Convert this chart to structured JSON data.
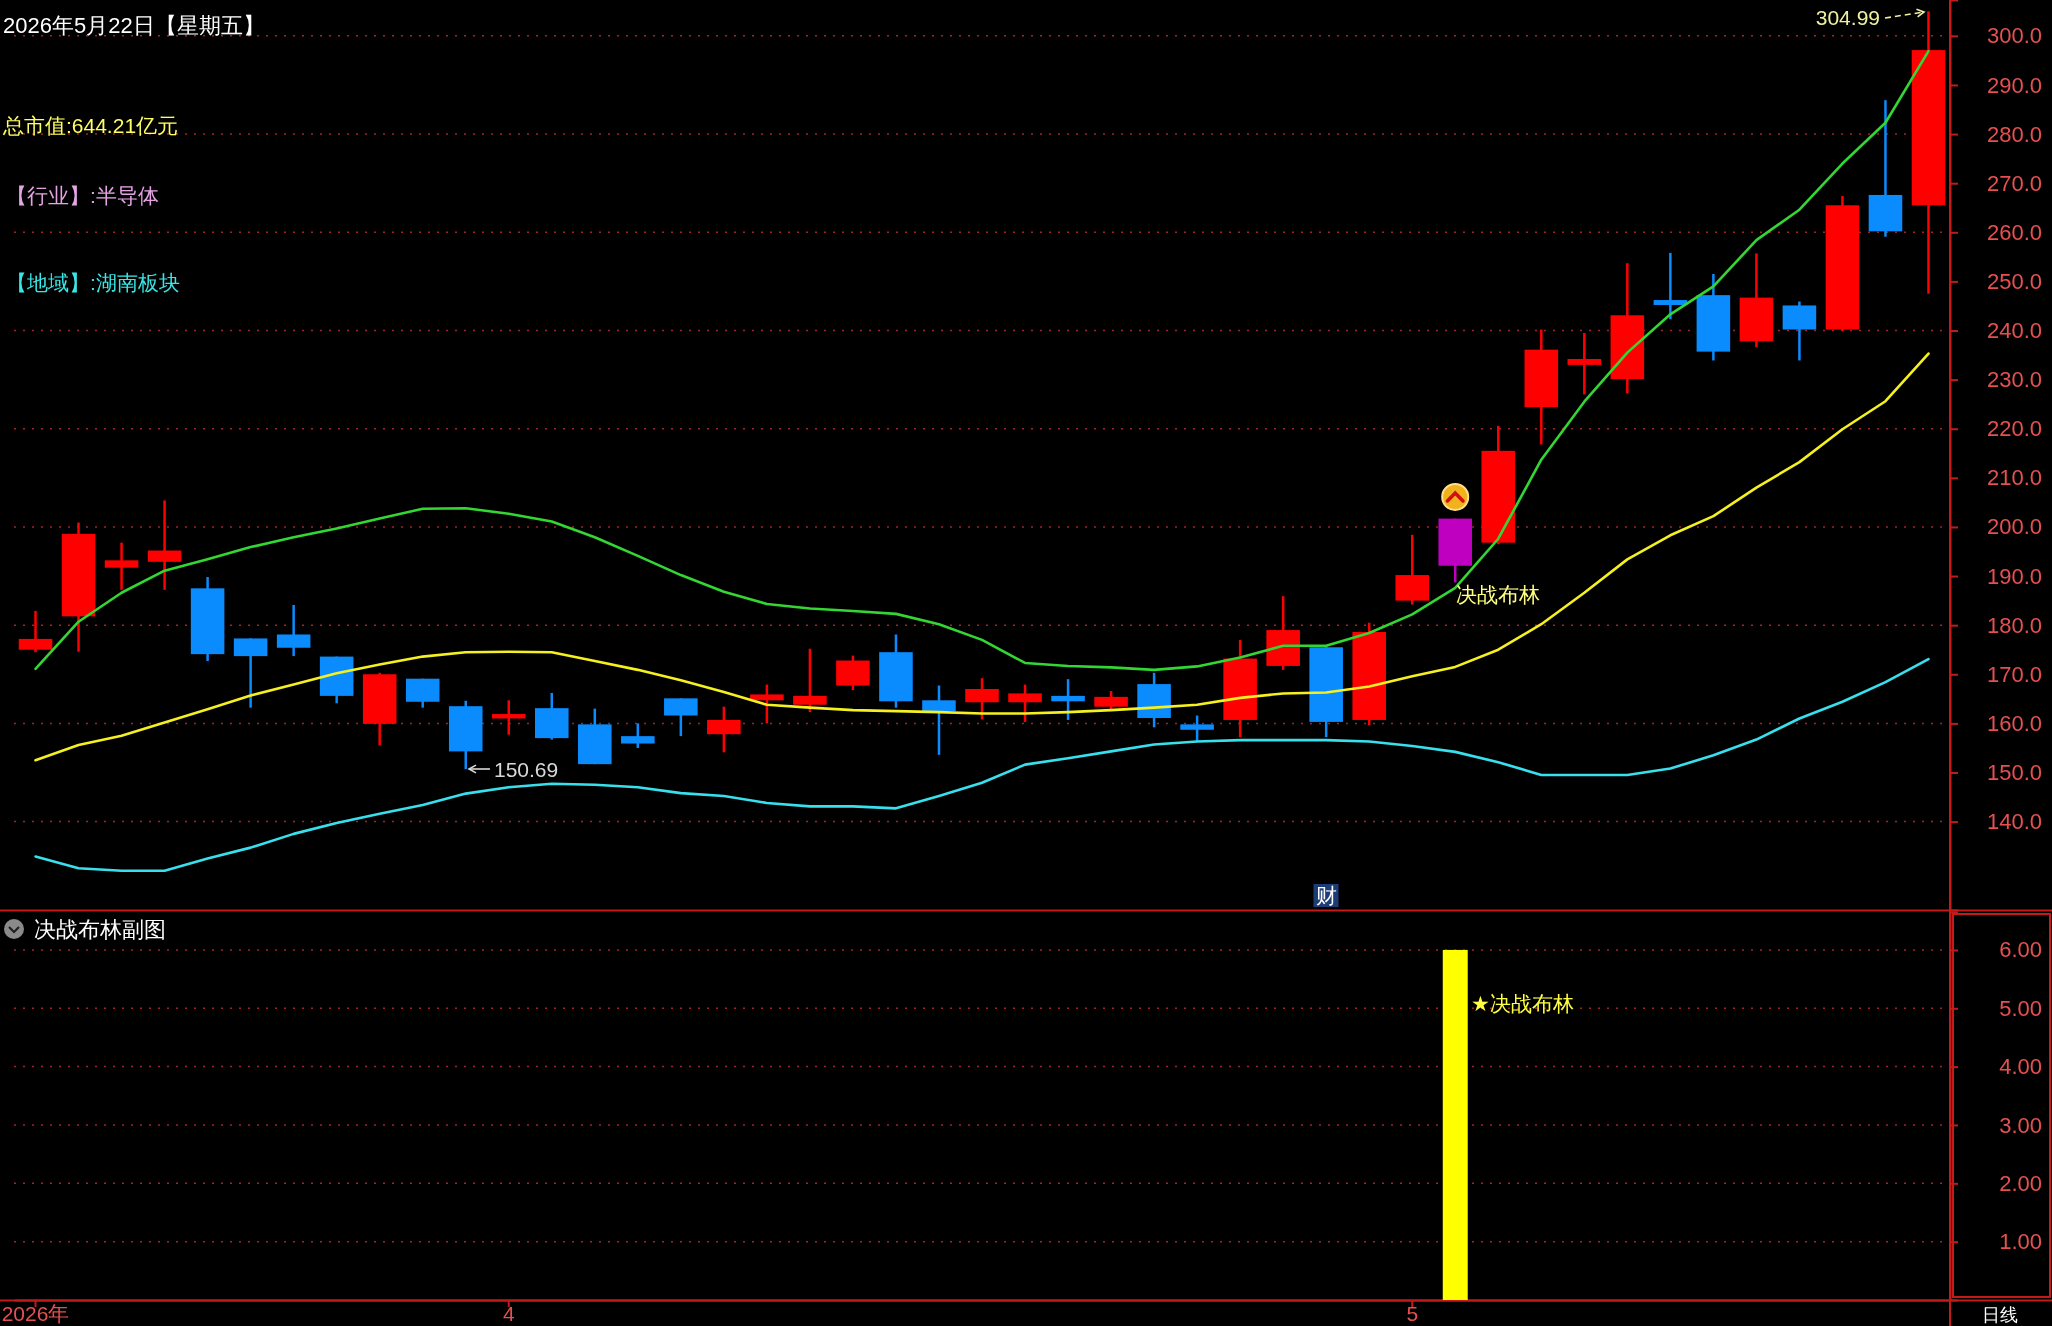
{
  "chart_data": [
    {
      "type": "candlestick",
      "title": "2026年5月22日【星期五】",
      "categories": [
        null,
        null,
        null,
        null,
        null,
        null,
        null,
        null,
        null,
        null,
        null,
        null,
        null,
        null,
        null,
        null,
        null,
        null,
        null,
        null,
        null,
        null,
        null,
        null,
        null,
        null,
        null,
        null,
        null,
        null,
        null,
        null,
        null,
        null,
        null,
        null,
        null,
        null,
        null,
        null,
        null,
        null,
        null,
        null,
        null
      ],
      "ohlc": [
        [
          175.0,
          182.9,
          174.5,
          177.2
        ],
        [
          181.8,
          200.9,
          174.6,
          198.6
        ],
        [
          191.7,
          196.8,
          187.2,
          193.2
        ],
        [
          192.9,
          205.4,
          187.2,
          195.2
        ],
        [
          187.5,
          189.8,
          172.7,
          174.1
        ],
        [
          177.3,
          177.3,
          163.2,
          173.7
        ],
        [
          178.1,
          184.1,
          173.7,
          175.4
        ],
        [
          173.6,
          173.6,
          164.1,
          165.6
        ],
        [
          159.9,
          170.3,
          155.5,
          170.0
        ],
        [
          169.1,
          169.1,
          163.2,
          164.4
        ],
        [
          163.5,
          164.6,
          150.69,
          154.3
        ],
        [
          161.0,
          164.7,
          157.7,
          161.9
        ],
        [
          163.1,
          166.2,
          156.7,
          157.0
        ],
        [
          159.8,
          163.0,
          151.7,
          151.7
        ],
        [
          157.4,
          160.0,
          155.0,
          155.9
        ],
        [
          165.1,
          165.1,
          157.4,
          161.6
        ],
        [
          157.8,
          163.4,
          154.1,
          160.7
        ],
        [
          164.7,
          167.9,
          160.0,
          165.9
        ],
        [
          163.8,
          175.2,
          162.3,
          165.6
        ],
        [
          167.7,
          173.8,
          166.8,
          172.8
        ],
        [
          174.5,
          178.1,
          163.2,
          164.5
        ],
        [
          164.7,
          167.7,
          153.6,
          162.5
        ],
        [
          164.3,
          169.2,
          160.8,
          167.0
        ],
        [
          164.3,
          167.9,
          160.3,
          166.1
        ],
        [
          165.6,
          169.0,
          160.7,
          164.5
        ],
        [
          163.4,
          166.6,
          162.5,
          165.4
        ],
        [
          168.0,
          170.3,
          159.2,
          161.1
        ],
        [
          159.8,
          161.6,
          156.3,
          158.7
        ],
        [
          160.7,
          177.0,
          157.2,
          173.2
        ],
        [
          171.7,
          185.9,
          170.9,
          179.0
        ],
        [
          175.5,
          175.9,
          157.2,
          160.3
        ],
        [
          160.7,
          180.5,
          159.6,
          178.6
        ],
        [
          185.0,
          198.4,
          184.2,
          190.2
        ],
        [
          192.1,
          201.7,
          188.7,
          201.7
        ],
        [
          196.8,
          220.6,
          196.5,
          215.5
        ],
        [
          224.4,
          240.2,
          216.8,
          236.1
        ],
        [
          233.0,
          239.5,
          227.0,
          234.2
        ],
        [
          230.1,
          253.7,
          227.2,
          243.1
        ],
        [
          246.2,
          255.8,
          242.3,
          245.2
        ],
        [
          247.2,
          251.5,
          233.9,
          235.7
        ],
        [
          237.8,
          255.7,
          236.6,
          246.7
        ],
        [
          245.1,
          245.9,
          233.9,
          240.2
        ],
        [
          240.2,
          267.4,
          239.9,
          265.5
        ],
        [
          267.6,
          286.9,
          259.1,
          260.2
        ],
        [
          265.5,
          304.99,
          247.5,
          297.1
        ]
      ],
      "colors": [
        "#ff0000",
        "#ff0000",
        "#ff0000",
        "#ff0000",
        "#0a8cff",
        "#0a8cff",
        "#0a8cff",
        "#0a8cff",
        "#ff0000",
        "#0a8cff",
        "#0a8cff",
        "#ff0000",
        "#0a8cff",
        "#0a8cff",
        "#0a8cff",
        "#0a8cff",
        "#ff0000",
        "#ff0000",
        "#ff0000",
        "#ff0000",
        "#0a8cff",
        "#0a8cff",
        "#ff0000",
        "#ff0000",
        "#0a8cff",
        "#ff0000",
        "#0a8cff",
        "#0a8cff",
        "#ff0000",
        "#ff0000",
        "#0a8cff",
        "#ff0000",
        "#ff0000",
        "#c000c0",
        "#ff0000",
        "#ff0000",
        "#ff0000",
        "#ff0000",
        "#0a8cff",
        "#0a8cff",
        "#ff0000",
        "#0a8cff",
        "#ff0000",
        "#0a8cff",
        "#ff0000"
      ],
      "series": [
        {
          "type": "line",
          "color": "#33d633",
          "values": [
            171.1,
            180.7,
            186.6,
            191.1,
            193.4,
            195.9,
            197.9,
            199.7,
            201.7,
            203.7,
            203.8,
            202.7,
            201.1,
            197.9,
            194.1,
            190.2,
            186.8,
            184.3,
            183.4,
            182.9,
            182.3,
            180.2,
            177.0,
            172.3,
            171.7,
            171.4,
            170.9,
            171.6,
            173.4,
            175.8,
            175.8,
            178.4,
            182.2,
            187.6,
            197.6,
            213.7,
            225.5,
            235.5,
            243.3,
            249.0,
            258.4,
            264.6,
            274.0,
            282.3,
            296.9
          ]
        },
        {
          "type": "line",
          "color": "#f5f020",
          "values": [
            152.5,
            155.6,
            157.5,
            160.2,
            162.9,
            165.7,
            167.9,
            170.2,
            172.0,
            173.6,
            174.5,
            174.6,
            174.5,
            172.7,
            170.9,
            168.8,
            166.4,
            163.8,
            163.2,
            162.7,
            162.5,
            162.3,
            162.0,
            162.0,
            162.3,
            162.7,
            163.2,
            163.8,
            165.2,
            166.1,
            166.3,
            167.5,
            169.6,
            171.5,
            175.0,
            180.2,
            186.6,
            193.4,
            198.3,
            202.2,
            208.0,
            213.2,
            219.9,
            225.6,
            235.3
          ]
        },
        {
          "type": "line",
          "color": "#38e0ee",
          "values": [
            132.9,
            130.5,
            130.0,
            130.0,
            132.5,
            134.7,
            137.5,
            139.7,
            141.6,
            143.4,
            145.7,
            147.0,
            147.7,
            147.5,
            147.0,
            145.8,
            145.2,
            143.8,
            143.1,
            143.1,
            142.7,
            145.2,
            147.9,
            151.6,
            152.9,
            154.3,
            155.7,
            156.3,
            156.6,
            156.6,
            156.6,
            156.3,
            155.4,
            154.2,
            152.1,
            149.5,
            149.5,
            149.5,
            150.8,
            153.5,
            156.7,
            161.0,
            164.4,
            168.4,
            173.1
          ]
        }
      ],
      "ylim": [
        122,
        307.3
      ],
      "yticks": [
        {
          "value": 140,
          "label": "140.0"
        },
        {
          "value": 150,
          "label": "150.0"
        },
        {
          "value": 160,
          "label": "160.0"
        },
        {
          "value": 170,
          "label": "170.0"
        },
        {
          "value": 180,
          "label": "180.0"
        },
        {
          "value": 190,
          "label": "190.0"
        },
        {
          "value": 200,
          "label": "200.0"
        },
        {
          "value": 210,
          "label": "210.0"
        },
        {
          "value": 220,
          "label": "220.0"
        },
        {
          "value": 230,
          "label": "230.0"
        },
        {
          "value": 240,
          "label": "240.0"
        },
        {
          "value": 250,
          "label": "250.0"
        },
        {
          "value": 260,
          "label": "260.0"
        },
        {
          "value": 270,
          "label": "270.0"
        },
        {
          "value": 280,
          "label": "280.0"
        },
        {
          "value": 290,
          "label": "290.0"
        },
        {
          "value": 300,
          "label": "300.0"
        }
      ],
      "grid": "y",
      "tick_labels": "y",
      "annotations": [
        "总市值:644.21亿元",
        "【行业】:半导体",
        "【地域】:湖南板块",
        "304.99",
        "150.69",
        "决战布林",
        "财"
      ]
    },
    {
      "type": "bar",
      "title": "决战布林副图",
      "categories": [
        "2026年",
        null,
        null,
        null,
        null,
        null,
        null,
        null,
        null,
        null,
        null,
        "4",
        null,
        null,
        null,
        null,
        null,
        null,
        null,
        null,
        null,
        null,
        null,
        null,
        null,
        null,
        null,
        null,
        null,
        null,
        null,
        null,
        "5",
        null,
        null,
        null,
        null,
        null,
        null,
        null,
        null,
        null,
        null,
        null,
        null
      ],
      "values": [
        null,
        null,
        null,
        null,
        null,
        null,
        null,
        null,
        null,
        null,
        null,
        null,
        null,
        null,
        null,
        null,
        null,
        null,
        null,
        null,
        null,
        null,
        null,
        null,
        null,
        null,
        null,
        null,
        null,
        null,
        null,
        null,
        null,
        6,
        null,
        null,
        null,
        null,
        null,
        null,
        null,
        null,
        null,
        null,
        null
      ],
      "color": "#ffff00",
      "ylim": [
        0,
        6.65
      ],
      "yticks": [
        {
          "value": 1,
          "label": "1.00"
        },
        {
          "value": 2,
          "label": "2.00"
        },
        {
          "value": 3,
          "label": "3.00"
        },
        {
          "value": 4,
          "label": "4.00"
        },
        {
          "value": 5,
          "label": "5.00"
        },
        {
          "value": 6,
          "label": "6.00"
        }
      ],
      "grid": "y",
      "annotations": [
        "★决战布林",
        "日线"
      ]
    }
  ]
}
